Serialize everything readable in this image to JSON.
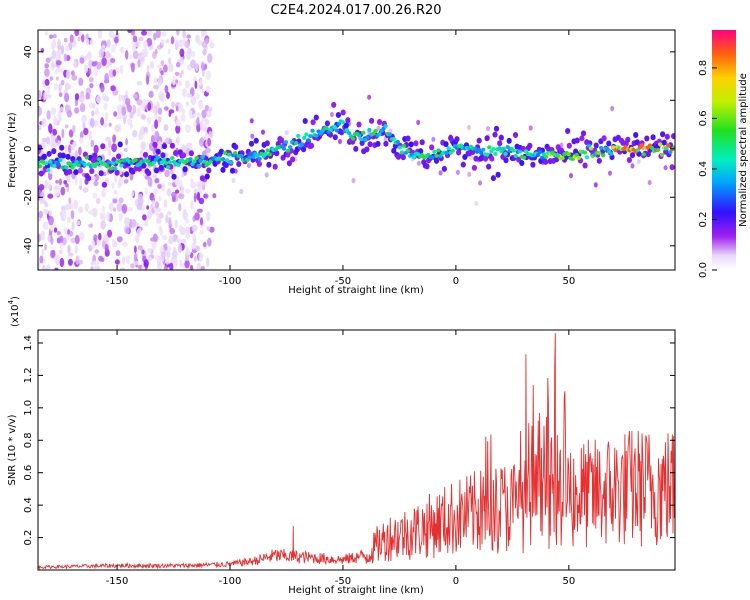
{
  "title": "C2E4.2024.017.00.26.R20",
  "colors": {
    "snr_line": "#e53030",
    "axis": "#000000",
    "background": "#ffffff"
  },
  "chart_data": [
    {
      "type": "heatmap",
      "xlabel": "Height of straight line (km)",
      "ylabel": "Frequency (Hz)",
      "xlim": [
        -185,
        97
      ],
      "ylim": [
        -50,
        49
      ],
      "xticks": [
        -150,
        -100,
        -50,
        0,
        50
      ],
      "yticks": [
        -40,
        -20,
        0,
        20,
        40
      ],
      "colorbar": {
        "label": "Normalized spectral amplitude",
        "range": [
          0,
          0.95
        ],
        "ticks": [
          0.0,
          0.2,
          0.4,
          0.6,
          0.8
        ],
        "colormap": "rainbow"
      },
      "ridge": {
        "x": [
          -185,
          -150,
          -110,
          -90,
          -75,
          -60,
          -50,
          -45,
          -35,
          -30,
          -25,
          -15,
          -5,
          0,
          10,
          20,
          30,
          45,
          60,
          75,
          97
        ],
        "y": [
          -6,
          -6,
          -5,
          -3,
          1,
          7,
          10,
          5,
          6,
          8,
          0,
          -3,
          -2,
          1,
          -1,
          -1,
          -2,
          -3,
          -1,
          0,
          0
        ]
      }
    },
    {
      "type": "line",
      "xlabel": "Height of straight line (km)",
      "ylabel": "SNR (10 * v/v)",
      "yscale_label": "(x10",
      "yscale_exp": "4",
      "yscale_suffix": ")",
      "xlim": [
        -185,
        97
      ],
      "ylim": [
        0,
        1.48
      ],
      "xticks": [
        -150,
        -100,
        -50,
        0,
        50
      ],
      "yticks": [
        0.2,
        0.4,
        0.6,
        0.8,
        1.0,
        1.2,
        1.4
      ],
      "envelope": {
        "x": [
          -185,
          -150,
          -120,
          -100,
          -90,
          -80,
          -70,
          -60,
          -50,
          -40,
          -35,
          -30,
          -20,
          -10,
          0,
          10,
          20,
          30,
          40,
          45,
          50,
          60,
          70,
          80,
          90,
          97
        ],
        "y": [
          0.02,
          0.03,
          0.03,
          0.04,
          0.06,
          0.1,
          0.09,
          0.08,
          0.07,
          0.1,
          0.2,
          0.26,
          0.3,
          0.36,
          0.42,
          0.46,
          0.5,
          0.52,
          0.6,
          0.62,
          0.6,
          0.6,
          0.64,
          0.66,
          0.66,
          0.66
        ]
      },
      "annotations": {
        "peak": {
          "x": 44,
          "y": 1.46
        },
        "spike_2": {
          "x": 31,
          "y": 1.33
        },
        "spike_3": {
          "x": -72,
          "y": 0.27
        }
      }
    }
  ]
}
